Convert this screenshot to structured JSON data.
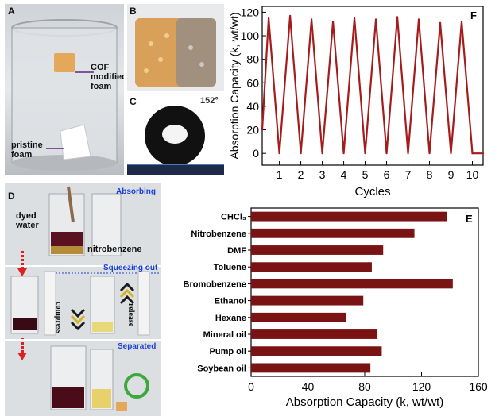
{
  "panel_a": {
    "label": "A",
    "annotation_cof": "COF modified foam",
    "annotation_pristine": "pristine foam",
    "colors": {
      "bg": "#d9dde2",
      "cof_foam": "#e3a85a",
      "pristine": "#ffffff"
    }
  },
  "panel_b": {
    "label": "B"
  },
  "panel_c": {
    "label": "C",
    "angle": "152°"
  },
  "panel_d": {
    "label": "D",
    "stage_absorbing": "Absorbing",
    "stage_squeezing": "Squeezing out",
    "stage_separated": "Separated",
    "ann_dyed_water": "dyed water",
    "ann_nitrobenzene": "nitrobenzene",
    "ann_compress": "compress",
    "ann_release": "release"
  },
  "chart_data": [
    {
      "id": "F",
      "type": "line",
      "panel_label": "F",
      "xlabel": "Cycles",
      "ylabel": "Absorption Capacity (k, wt/wt)",
      "xlim": [
        0.2,
        10.5
      ],
      "ylim": [
        -10,
        125
      ],
      "xticks": [
        1,
        2,
        3,
        4,
        5,
        6,
        7,
        8,
        9,
        10
      ],
      "yticks": [
        0,
        20,
        40,
        60,
        80,
        100,
        120
      ],
      "series": [
        {
          "name": "absorption",
          "color": "#a51c1c",
          "x": [
            0.2,
            0.5,
            1.0,
            1.5,
            2.0,
            2.5,
            3.0,
            3.5,
            4.0,
            4.5,
            5.0,
            5.5,
            6.0,
            6.5,
            7.0,
            7.5,
            8.0,
            8.5,
            9.0,
            9.5,
            10.0,
            10.5
          ],
          "y": [
            20,
            115,
            0,
            117,
            0,
            114,
            0,
            112,
            0,
            115,
            0,
            114,
            0,
            116,
            0,
            114,
            0,
            111,
            0,
            112,
            0,
            0
          ]
        }
      ]
    },
    {
      "id": "E",
      "type": "bar",
      "orientation": "horizontal",
      "panel_label": "E",
      "xlabel": "Absorption Capacity (k, wt/wt)",
      "xlim": [
        0,
        160
      ],
      "xticks": [
        0,
        40,
        80,
        120,
        160
      ],
      "categories": [
        "CHCl₃",
        "Nitrobenzene",
        "DMF",
        "Toluene",
        "Bromobenzene",
        "Ethanol",
        "Hexane",
        "Mineral oil",
        "Pump oil",
        "Soybean oil"
      ],
      "values": [
        138,
        115,
        93,
        85,
        142,
        79,
        67,
        89,
        92,
        84
      ],
      "color": "#7a1414"
    }
  ]
}
